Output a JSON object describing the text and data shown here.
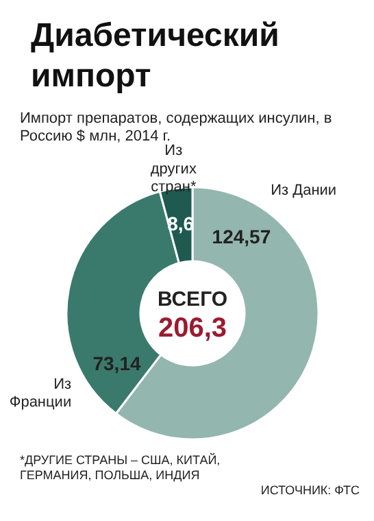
{
  "chart_data": {
    "type": "donut",
    "title": "Диабетический импорт",
    "subtitle": "Импорт препаратов, содержащих инсулин, в Россию $ млн, 2014 г.",
    "categories": [
      "Из Дании",
      "Из Франции",
      "Из других стран*"
    ],
    "values": [
      124.57,
      73.14,
      8.6
    ],
    "colors": [
      "#93b6ae",
      "#3a7a6c",
      "#1e5a50"
    ],
    "value_labels": [
      "124,57",
      "73,14",
      "8,6"
    ],
    "annotations": [
      "ВСЕГО",
      "206,3",
      "*ДРУГИЕ СТРАНЫ – США, КИТАЙ, ГЕРМАНИЯ, ПОЛЬША, ИНДИЯ",
      "ИСТОЧНИК: ФТС"
    ]
  }
}
